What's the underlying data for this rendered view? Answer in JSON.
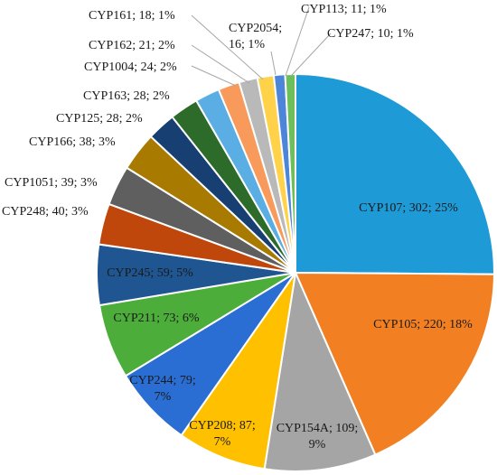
{
  "chart_data": {
    "type": "pie",
    "title": "",
    "slices": [
      {
        "label": "CYP107; 302; 25%",
        "value": 302,
        "percent": 25,
        "color": "#1e9bd7"
      },
      {
        "label": "CYP105; 220; 18%",
        "value": 220,
        "percent": 18,
        "color": "#f28022"
      },
      {
        "label": "CYP154A; 109; 9%",
        "value": 109,
        "percent": 9,
        "color": "#a5a5a5"
      },
      {
        "label": "CYP208; 87; 7%",
        "value": 87,
        "percent": 7,
        "color": "#ffc000"
      },
      {
        "label": "CYP244; 79; 7%",
        "value": 79,
        "percent": 7,
        "color": "#2a6ed3"
      },
      {
        "label": "CYP211; 73; 6%",
        "value": 73,
        "percent": 6,
        "color": "#4cad3b"
      },
      {
        "label": "CYP245; 59; 5%",
        "value": 59,
        "percent": 5,
        "color": "#1f5590"
      },
      {
        "label": "CYP248; 40; 3%",
        "value": 40,
        "percent": 3,
        "color": "#c0470b"
      },
      {
        "label": "CYP1051; 39; 3%",
        "value": 39,
        "percent": 3,
        "color": "#5f5f5f"
      },
      {
        "label": "CYP166; 38; 3%",
        "value": 38,
        "percent": 3,
        "color": "#a87a00"
      },
      {
        "label": "CYP125; 28; 2%",
        "value": 28,
        "percent": 2,
        "color": "#173f72"
      },
      {
        "label": "CYP163; 28; 2%",
        "value": 28,
        "percent": 2,
        "color": "#2c6b2a"
      },
      {
        "label": "CYP1004; 24; 2%",
        "value": 24,
        "percent": 2,
        "color": "#5aaee3"
      },
      {
        "label": "CYP162; 21; 2%",
        "value": 21,
        "percent": 2,
        "color": "#f79a5c"
      },
      {
        "label": "CYP161; 18; 1%",
        "value": 18,
        "percent": 1,
        "color": "#b9b9b9"
      },
      {
        "label": "CYP2054; 16; 1%",
        "value": 16,
        "percent": 1,
        "color": "#ffd24a"
      },
      {
        "label": "CYP113; 11; 1%",
        "value": 11,
        "percent": 1,
        "color": "#4d86d9"
      },
      {
        "label": "CYP247; 10; 1%",
        "value": 10,
        "percent": 1,
        "color": "#6cbf5a"
      }
    ]
  }
}
